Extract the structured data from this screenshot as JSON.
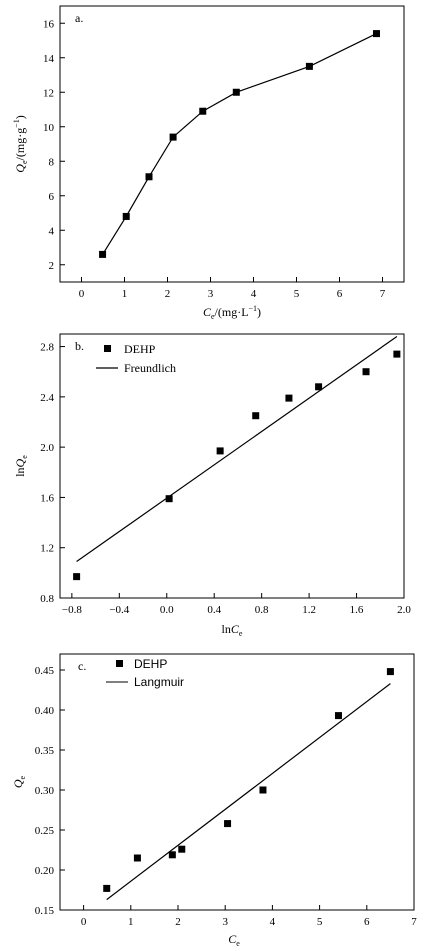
{
  "chart_data": [
    {
      "type": "line",
      "panel_label": "a.",
      "xlabel": "Ce/(mg·L−1)",
      "ylabel": "Qe/(mg·g−1)",
      "xlim": [
        -0.5,
        7.5
      ],
      "ylim": [
        1,
        17
      ],
      "xticks": [
        0,
        1,
        2,
        3,
        4,
        5,
        6,
        7
      ],
      "yticks": [
        2,
        4,
        6,
        8,
        10,
        12,
        14,
        16
      ],
      "series": [
        {
          "x": [
            0.49,
            1.04,
            1.57,
            2.13,
            2.82,
            3.6,
            5.3,
            6.86
          ],
          "y": [
            2.6,
            4.8,
            7.1,
            9.4,
            10.9,
            12.0,
            13.5,
            15.4
          ]
        }
      ]
    },
    {
      "type": "scatter",
      "panel_label": "b.",
      "xlabel": "lnCe",
      "ylabel": "lnQe",
      "xlim": [
        -0.9,
        2.0
      ],
      "ylim": [
        0.8,
        2.9
      ],
      "xticks": [
        -0.8,
        -0.4,
        0.0,
        0.4,
        0.8,
        1.2,
        1.6,
        2.0
      ],
      "yticks": [
        0.8,
        1.2,
        1.6,
        2.0,
        2.4,
        2.8
      ],
      "legend": {
        "position": "top-left",
        "items": [
          "DEHP",
          "Freundlich"
        ]
      },
      "series": [
        {
          "name": "DEHP",
          "x": [
            -0.76,
            0.02,
            0.45,
            0.75,
            1.03,
            1.28,
            1.68,
            1.94
          ],
          "y": [
            0.97,
            1.59,
            1.97,
            2.25,
            2.39,
            2.48,
            2.6,
            2.74
          ]
        },
        {
          "name": "Freundlich",
          "fit": true,
          "x": [
            -0.76,
            1.94
          ],
          "y": [
            1.09,
            2.88
          ]
        }
      ]
    },
    {
      "type": "scatter",
      "panel_label": "c.",
      "xlabel": "Ce",
      "ylabel": "Qe",
      "xlim": [
        -0.5,
        7.0
      ],
      "ylim": [
        0.15,
        0.47
      ],
      "xticks": [
        0,
        1,
        2,
        3,
        4,
        5,
        6,
        7
      ],
      "yticks": [
        0.15,
        0.2,
        0.25,
        0.3,
        0.35,
        0.4,
        0.45
      ],
      "legend": {
        "position": "top-left",
        "items": [
          "DEHP",
          "Langmuir"
        ]
      },
      "series": [
        {
          "name": "DEHP",
          "x": [
            0.49,
            1.14,
            1.88,
            2.08,
            3.05,
            3.8,
            5.4,
            6.5
          ],
          "y": [
            0.177,
            0.215,
            0.219,
            0.226,
            0.258,
            0.3,
            0.393,
            0.448
          ]
        },
        {
          "name": "Langmuir",
          "fit": true,
          "x": [
            0.49,
            6.5
          ],
          "y": [
            0.163,
            0.433
          ]
        }
      ]
    }
  ]
}
